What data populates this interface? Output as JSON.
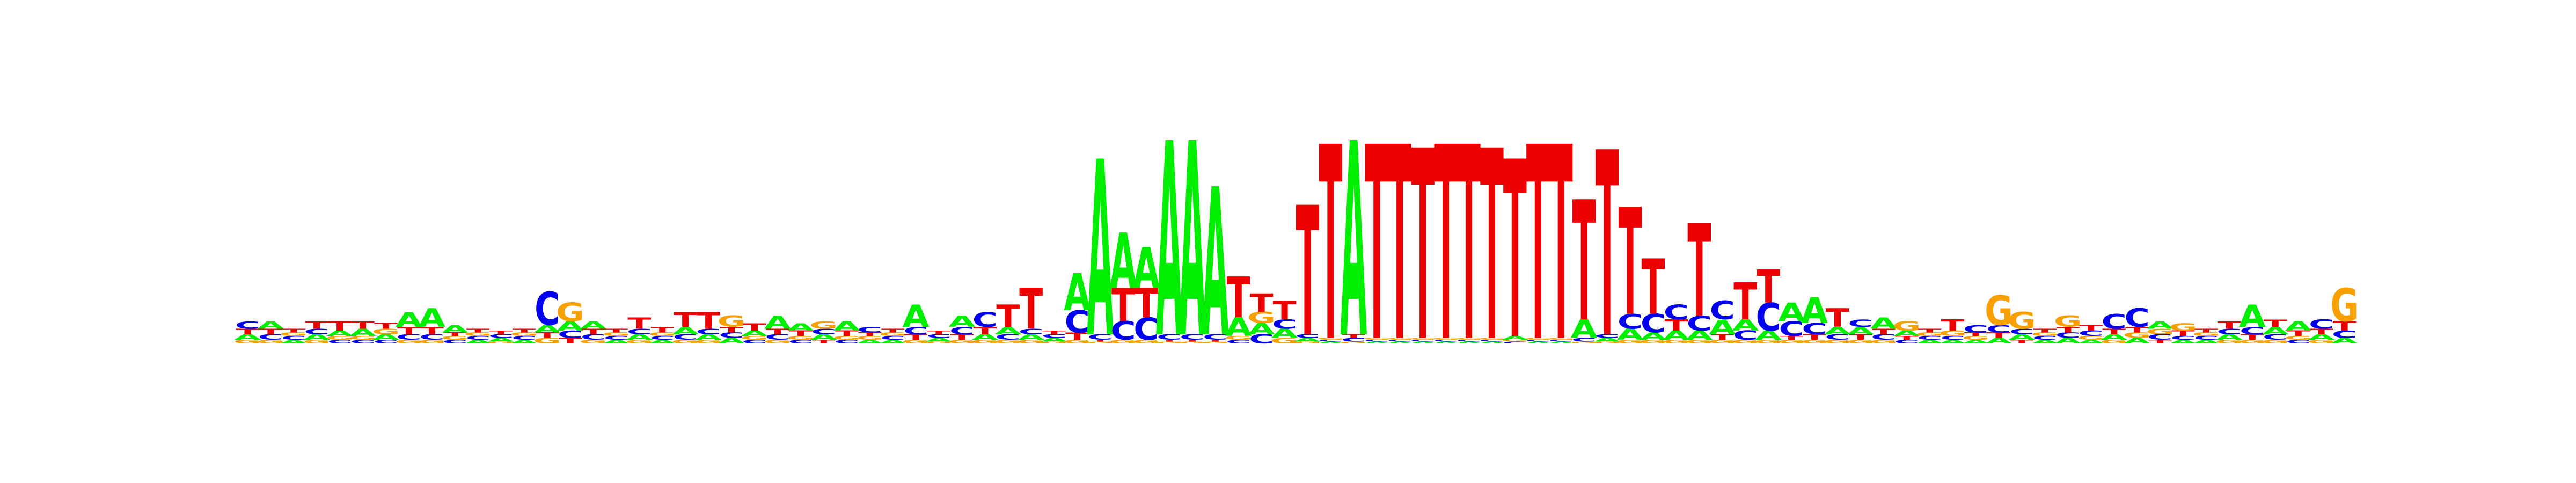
{
  "chart_data": {
    "type": "sequence-logo",
    "title": "",
    "xlabel": "",
    "ylabel": "",
    "colors": {
      "A": "#00ee00",
      "C": "#0000ee",
      "G": "#f7a000",
      "T": "#ee0000"
    },
    "ylim": [
      0,
      2
    ],
    "positions": [
      {
        "A": 0.03,
        "C": 0.04,
        "G": 0.02,
        "T": 0.03
      },
      {
        "A": 0.04,
        "C": 0.03,
        "G": 0.02,
        "T": 0.03
      },
      {
        "A": 0.02,
        "C": 0.02,
        "G": 0.02,
        "T": 0.02
      },
      {
        "A": 0.03,
        "C": 0.03,
        "G": 0.02,
        "T": 0.04
      },
      {
        "A": 0.03,
        "C": 0.02,
        "G": 0.02,
        "T": 0.05
      },
      {
        "A": 0.04,
        "C": 0.02,
        "G": 0.02,
        "T": 0.04
      },
      {
        "A": 0.03,
        "C": 0.02,
        "G": 0.03,
        "T": 0.03
      },
      {
        "A": 0.08,
        "C": 0.03,
        "G": 0.02,
        "T": 0.04
      },
      {
        "A": 0.1,
        "C": 0.03,
        "G": 0.02,
        "T": 0.04
      },
      {
        "A": 0.04,
        "C": 0.02,
        "G": 0.02,
        "T": 0.02
      },
      {
        "A": 0.02,
        "C": 0.02,
        "G": 0.02,
        "T": 0.02
      },
      {
        "A": 0.02,
        "C": 0.02,
        "G": 0.01,
        "T": 0.02
      },
      {
        "A": 0.02,
        "C": 0.02,
        "G": 0.02,
        "T": 0.02
      },
      {
        "A": 0.04,
        "C": 0.18,
        "G": 0.03,
        "T": 0.03
      },
      {
        "A": 0.05,
        "C": 0.04,
        "G": 0.1,
        "T": 0.03
      },
      {
        "A": 0.04,
        "C": 0.03,
        "G": 0.02,
        "T": 0.03
      },
      {
        "A": 0.02,
        "C": 0.02,
        "G": 0.02,
        "T": 0.02
      },
      {
        "A": 0.03,
        "C": 0.03,
        "G": 0.02,
        "T": 0.06
      },
      {
        "A": 0.02,
        "C": 0.02,
        "G": 0.02,
        "T": 0.03
      },
      {
        "A": 0.04,
        "C": 0.03,
        "G": 0.02,
        "T": 0.08
      },
      {
        "A": 0.03,
        "C": 0.03,
        "G": 0.02,
        "T": 0.09
      },
      {
        "A": 0.03,
        "C": 0.03,
        "G": 0.06,
        "T": 0.03
      },
      {
        "A": 0.03,
        "C": 0.02,
        "G": 0.02,
        "T": 0.04
      },
      {
        "A": 0.07,
        "C": 0.03,
        "G": 0.02,
        "T": 0.03
      },
      {
        "A": 0.04,
        "C": 0.02,
        "G": 0.02,
        "T": 0.03
      },
      {
        "A": 0.03,
        "C": 0.03,
        "G": 0.04,
        "T": 0.02
      },
      {
        "A": 0.05,
        "C": 0.02,
        "G": 0.02,
        "T": 0.03
      },
      {
        "A": 0.02,
        "C": 0.03,
        "G": 0.02,
        "T": 0.02
      },
      {
        "A": 0.02,
        "C": 0.02,
        "G": 0.02,
        "T": 0.02
      },
      {
        "A": 0.12,
        "C": 0.04,
        "G": 0.02,
        "T": 0.03
      },
      {
        "A": 0.02,
        "C": 0.02,
        "G": 0.01,
        "T": 0.02
      },
      {
        "A": 0.06,
        "C": 0.04,
        "G": 0.02,
        "T": 0.03
      },
      {
        "A": 0.03,
        "C": 0.08,
        "G": 0.02,
        "T": 0.04
      },
      {
        "A": 0.04,
        "C": 0.03,
        "G": 0.02,
        "T": 0.12
      },
      {
        "A": 0.03,
        "C": 0.03,
        "G": 0.02,
        "T": 0.22
      },
      {
        "A": 0.02,
        "C": 0.02,
        "G": 0.01,
        "T": 0.02
      },
      {
        "A": 0.2,
        "C": 0.12,
        "G": 0.02,
        "T": 0.04
      },
      {
        "A": 0.95,
        "C": 0.03,
        "G": 0.01,
        "T": 0.01
      },
      {
        "A": 0.3,
        "C": 0.1,
        "G": 0.02,
        "T": 0.18
      },
      {
        "A": 0.22,
        "C": 0.12,
        "G": 0.02,
        "T": 0.16
      },
      {
        "A": 1.05,
        "C": 0.03,
        "G": 0.01,
        "T": 0.01
      },
      {
        "A": 1.05,
        "C": 0.03,
        "G": 0.01,
        "T": 0.01
      },
      {
        "A": 0.8,
        "C": 0.03,
        "G": 0.01,
        "T": 0.01
      },
      {
        "A": 0.1,
        "C": 0.02,
        "G": 0.02,
        "T": 0.22
      },
      {
        "A": 0.06,
        "C": 0.05,
        "G": 0.06,
        "T": 0.1
      },
      {
        "A": 0.05,
        "C": 0.05,
        "G": 0.03,
        "T": 0.1
      },
      {
        "A": 0.02,
        "C": 0.02,
        "G": 0.01,
        "T": 0.7
      },
      {
        "A": 0.01,
        "C": 0.01,
        "G": 0.01,
        "T": 1.05
      },
      {
        "A": 1.05,
        "C": 0.02,
        "G": 0.01,
        "T": 0.02
      },
      {
        "A": 0.01,
        "C": 0.01,
        "G": 0.01,
        "T": 1.05
      },
      {
        "A": 0.01,
        "C": 0.01,
        "G": 0.01,
        "T": 1.05
      },
      {
        "A": 0.01,
        "C": 0.01,
        "G": 0.01,
        "T": 1.03
      },
      {
        "A": 0.01,
        "C": 0.01,
        "G": 0.01,
        "T": 1.05
      },
      {
        "A": 0.01,
        "C": 0.01,
        "G": 0.01,
        "T": 1.05
      },
      {
        "A": 0.01,
        "C": 0.01,
        "G": 0.01,
        "T": 1.03
      },
      {
        "A": 0.02,
        "C": 0.01,
        "G": 0.01,
        "T": 0.96
      },
      {
        "A": 0.01,
        "C": 0.01,
        "G": 0.01,
        "T": 1.05
      },
      {
        "A": 0.01,
        "C": 0.01,
        "G": 0.01,
        "T": 1.05
      },
      {
        "A": 0.1,
        "C": 0.02,
        "G": 0.01,
        "T": 0.65
      },
      {
        "A": 0.02,
        "C": 0.02,
        "G": 0.01,
        "T": 1.0
      },
      {
        "A": 0.06,
        "C": 0.08,
        "G": 0.02,
        "T": 0.58
      },
      {
        "A": 0.04,
        "C": 0.1,
        "G": 0.02,
        "T": 0.3
      },
      {
        "A": 0.05,
        "C": 0.08,
        "G": 0.02,
        "T": 0.06
      },
      {
        "A": 0.05,
        "C": 0.08,
        "G": 0.02,
        "T": 0.5
      },
      {
        "A": 0.08,
        "C": 0.1,
        "G": 0.02,
        "T": 0.03
      },
      {
        "A": 0.06,
        "C": 0.05,
        "G": 0.02,
        "T": 0.2
      },
      {
        "A": 0.05,
        "C": 0.15,
        "G": 0.02,
        "T": 0.18
      },
      {
        "A": 0.1,
        "C": 0.08,
        "G": 0.02,
        "T": 0.02
      },
      {
        "A": 0.14,
        "C": 0.06,
        "G": 0.02,
        "T": 0.03
      },
      {
        "A": 0.04,
        "C": 0.03,
        "G": 0.02,
        "T": 0.1
      },
      {
        "A": 0.04,
        "C": 0.04,
        "G": 0.02,
        "T": 0.03
      },
      {
        "A": 0.06,
        "C": 0.03,
        "G": 0.02,
        "T": 0.03
      },
      {
        "A": 0.03,
        "C": 0.02,
        "G": 0.05,
        "T": 0.02
      },
      {
        "A": 0.02,
        "C": 0.02,
        "G": 0.02,
        "T": 0.02
      },
      {
        "A": 0.02,
        "C": 0.02,
        "G": 0.03,
        "T": 0.06
      },
      {
        "A": 0.02,
        "C": 0.04,
        "G": 0.02,
        "T": 0.02
      },
      {
        "A": 0.03,
        "C": 0.04,
        "G": 0.16,
        "T": 0.03
      },
      {
        "A": 0.03,
        "C": 0.03,
        "G": 0.09,
        "T": 0.02
      },
      {
        "A": 0.02,
        "C": 0.02,
        "G": 0.02,
        "T": 0.02
      },
      {
        "A": 0.03,
        "C": 0.03,
        "G": 0.06,
        "T": 0.03
      },
      {
        "A": 0.02,
        "C": 0.03,
        "G": 0.02,
        "T": 0.03
      },
      {
        "A": 0.03,
        "C": 0.08,
        "G": 0.02,
        "T": 0.03
      },
      {
        "A": 0.03,
        "C": 0.1,
        "G": 0.03,
        "T": 0.03
      },
      {
        "A": 0.04,
        "C": 0.03,
        "G": 0.03,
        "T": 0.02
      },
      {
        "A": 0.02,
        "C": 0.02,
        "G": 0.04,
        "T": 0.03
      },
      {
        "A": 0.02,
        "C": 0.02,
        "G": 0.02,
        "T": 0.02
      },
      {
        "A": 0.03,
        "C": 0.03,
        "G": 0.02,
        "T": 0.04
      },
      {
        "A": 0.12,
        "C": 0.04,
        "G": 0.02,
        "T": 0.03
      },
      {
        "A": 0.04,
        "C": 0.03,
        "G": 0.02,
        "T": 0.04
      },
      {
        "A": 0.05,
        "C": 0.02,
        "G": 0.02,
        "T": 0.03
      },
      {
        "A": 0.03,
        "C": 0.05,
        "G": 0.02,
        "T": 0.03
      },
      {
        "A": 0.03,
        "C": 0.04,
        "G": 0.18,
        "T": 0.05
      }
    ]
  }
}
